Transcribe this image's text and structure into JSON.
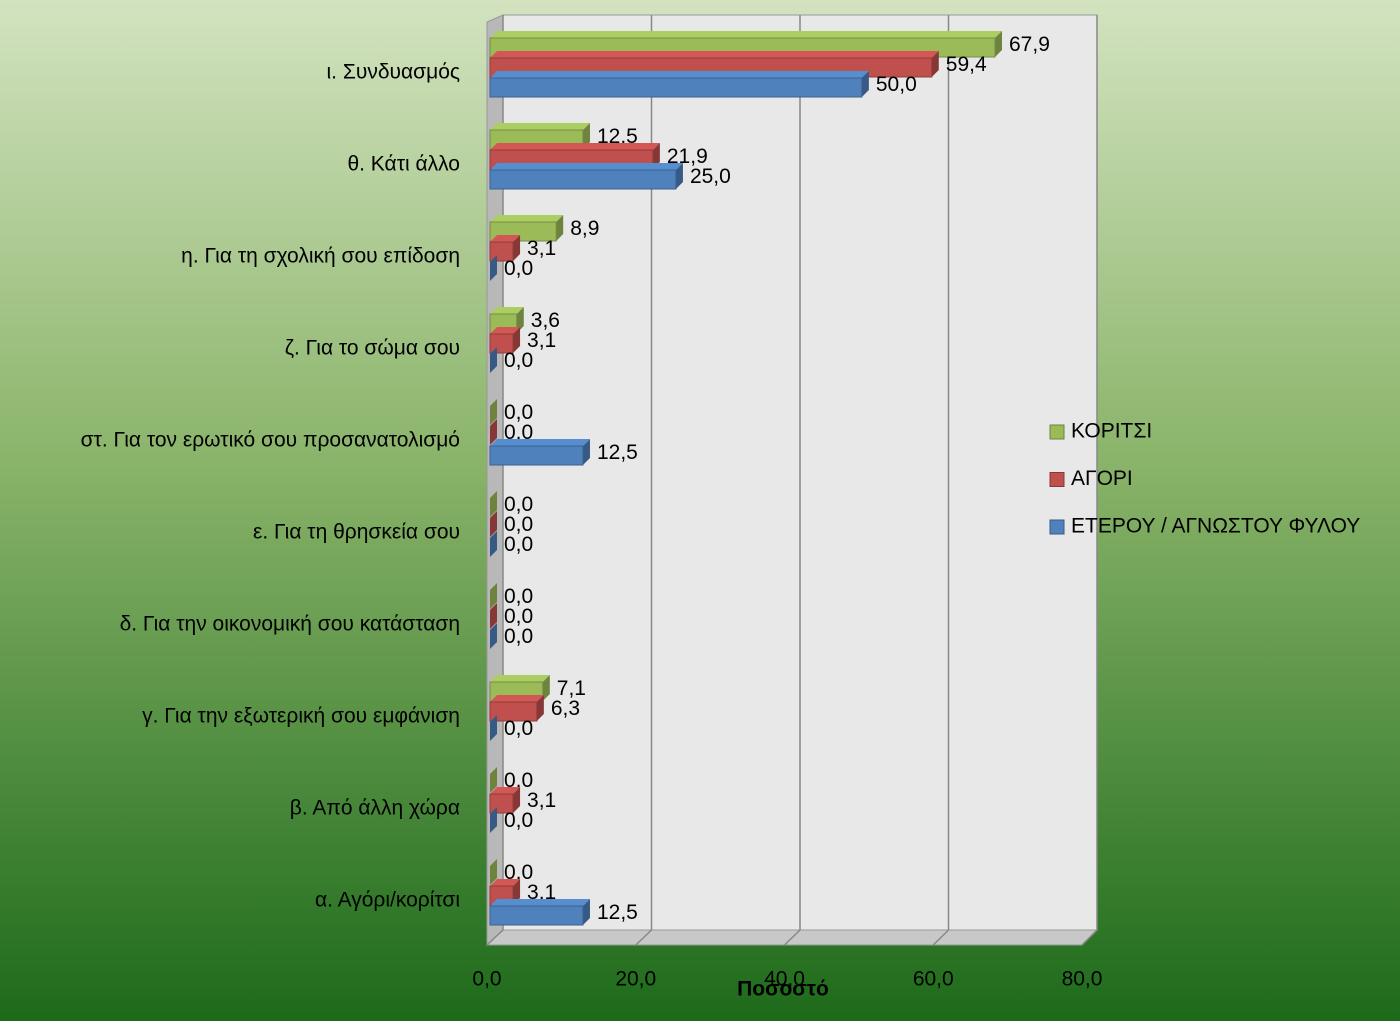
{
  "chart_data": {
    "type": "bar",
    "orientation": "horizontal",
    "x_label": "Ποσοστό",
    "categories": [
      "ι. Συνδυασμός",
      "θ. Κάτι άλλο",
      "η. Για τη σχολική σου επίδοση",
      "ζ. Για το σώμα σου",
      "στ. Για τον ερωτικό σου προσανατολισμό",
      "ε. Για τη θρησκεία σου",
      "δ. Για την οικονομική σου κατάσταση",
      "γ. Για την εξωτερική σου εμφάνιση",
      "β. Από άλλη χώρα",
      "α. Αγόρι/κορίτσι"
    ],
    "series": [
      {
        "name": "ΚΟΡΙΤΣΙ",
        "color": "#9bbb59",
        "values": [
          67.9,
          12.5,
          8.9,
          3.6,
          0,
          0,
          0,
          7.1,
          0,
          0
        ],
        "value_labels": [
          "67,9",
          "12,5",
          "8,9",
          "3,6",
          "0,0",
          "0,0",
          "0,0",
          "7,1",
          "0,0",
          "0,0"
        ]
      },
      {
        "name": "ΑΓΟΡΙ",
        "color": "#c0504d",
        "values": [
          59.4,
          21.9,
          3.1,
          3.1,
          0,
          0,
          0,
          6.3,
          3.1,
          3.1
        ],
        "value_labels": [
          "59,4",
          "21,9",
          "3,1",
          "3,1",
          "0,0",
          "0,0",
          "0,0",
          "6,3",
          "3,1",
          "3,1"
        ]
      },
      {
        "name": "ΕΤΕΡΟΥ / ΑΓΝΩΣΤΟΥ ΦΥΛΟΥ",
        "color": "#4f81bd",
        "values": [
          50.0,
          25.0,
          0,
          0,
          12.5,
          0,
          0,
          0,
          0,
          12.5
        ],
        "value_labels": [
          "50,0",
          "25,0",
          "0,0",
          "0,0",
          "12,5",
          "0,0",
          "0,0",
          "0,0",
          "0,0",
          "12,5"
        ]
      }
    ],
    "xlim": [
      0,
      80
    ],
    "xticks": [
      {
        "value": 0,
        "label": "0,0"
      },
      {
        "value": 20,
        "label": "20,0"
      },
      {
        "value": 40,
        "label": "40,0"
      },
      {
        "value": 60,
        "label": "60,0"
      },
      {
        "value": 80,
        "label": "80,0"
      }
    ],
    "grid": true,
    "legend": "right"
  }
}
